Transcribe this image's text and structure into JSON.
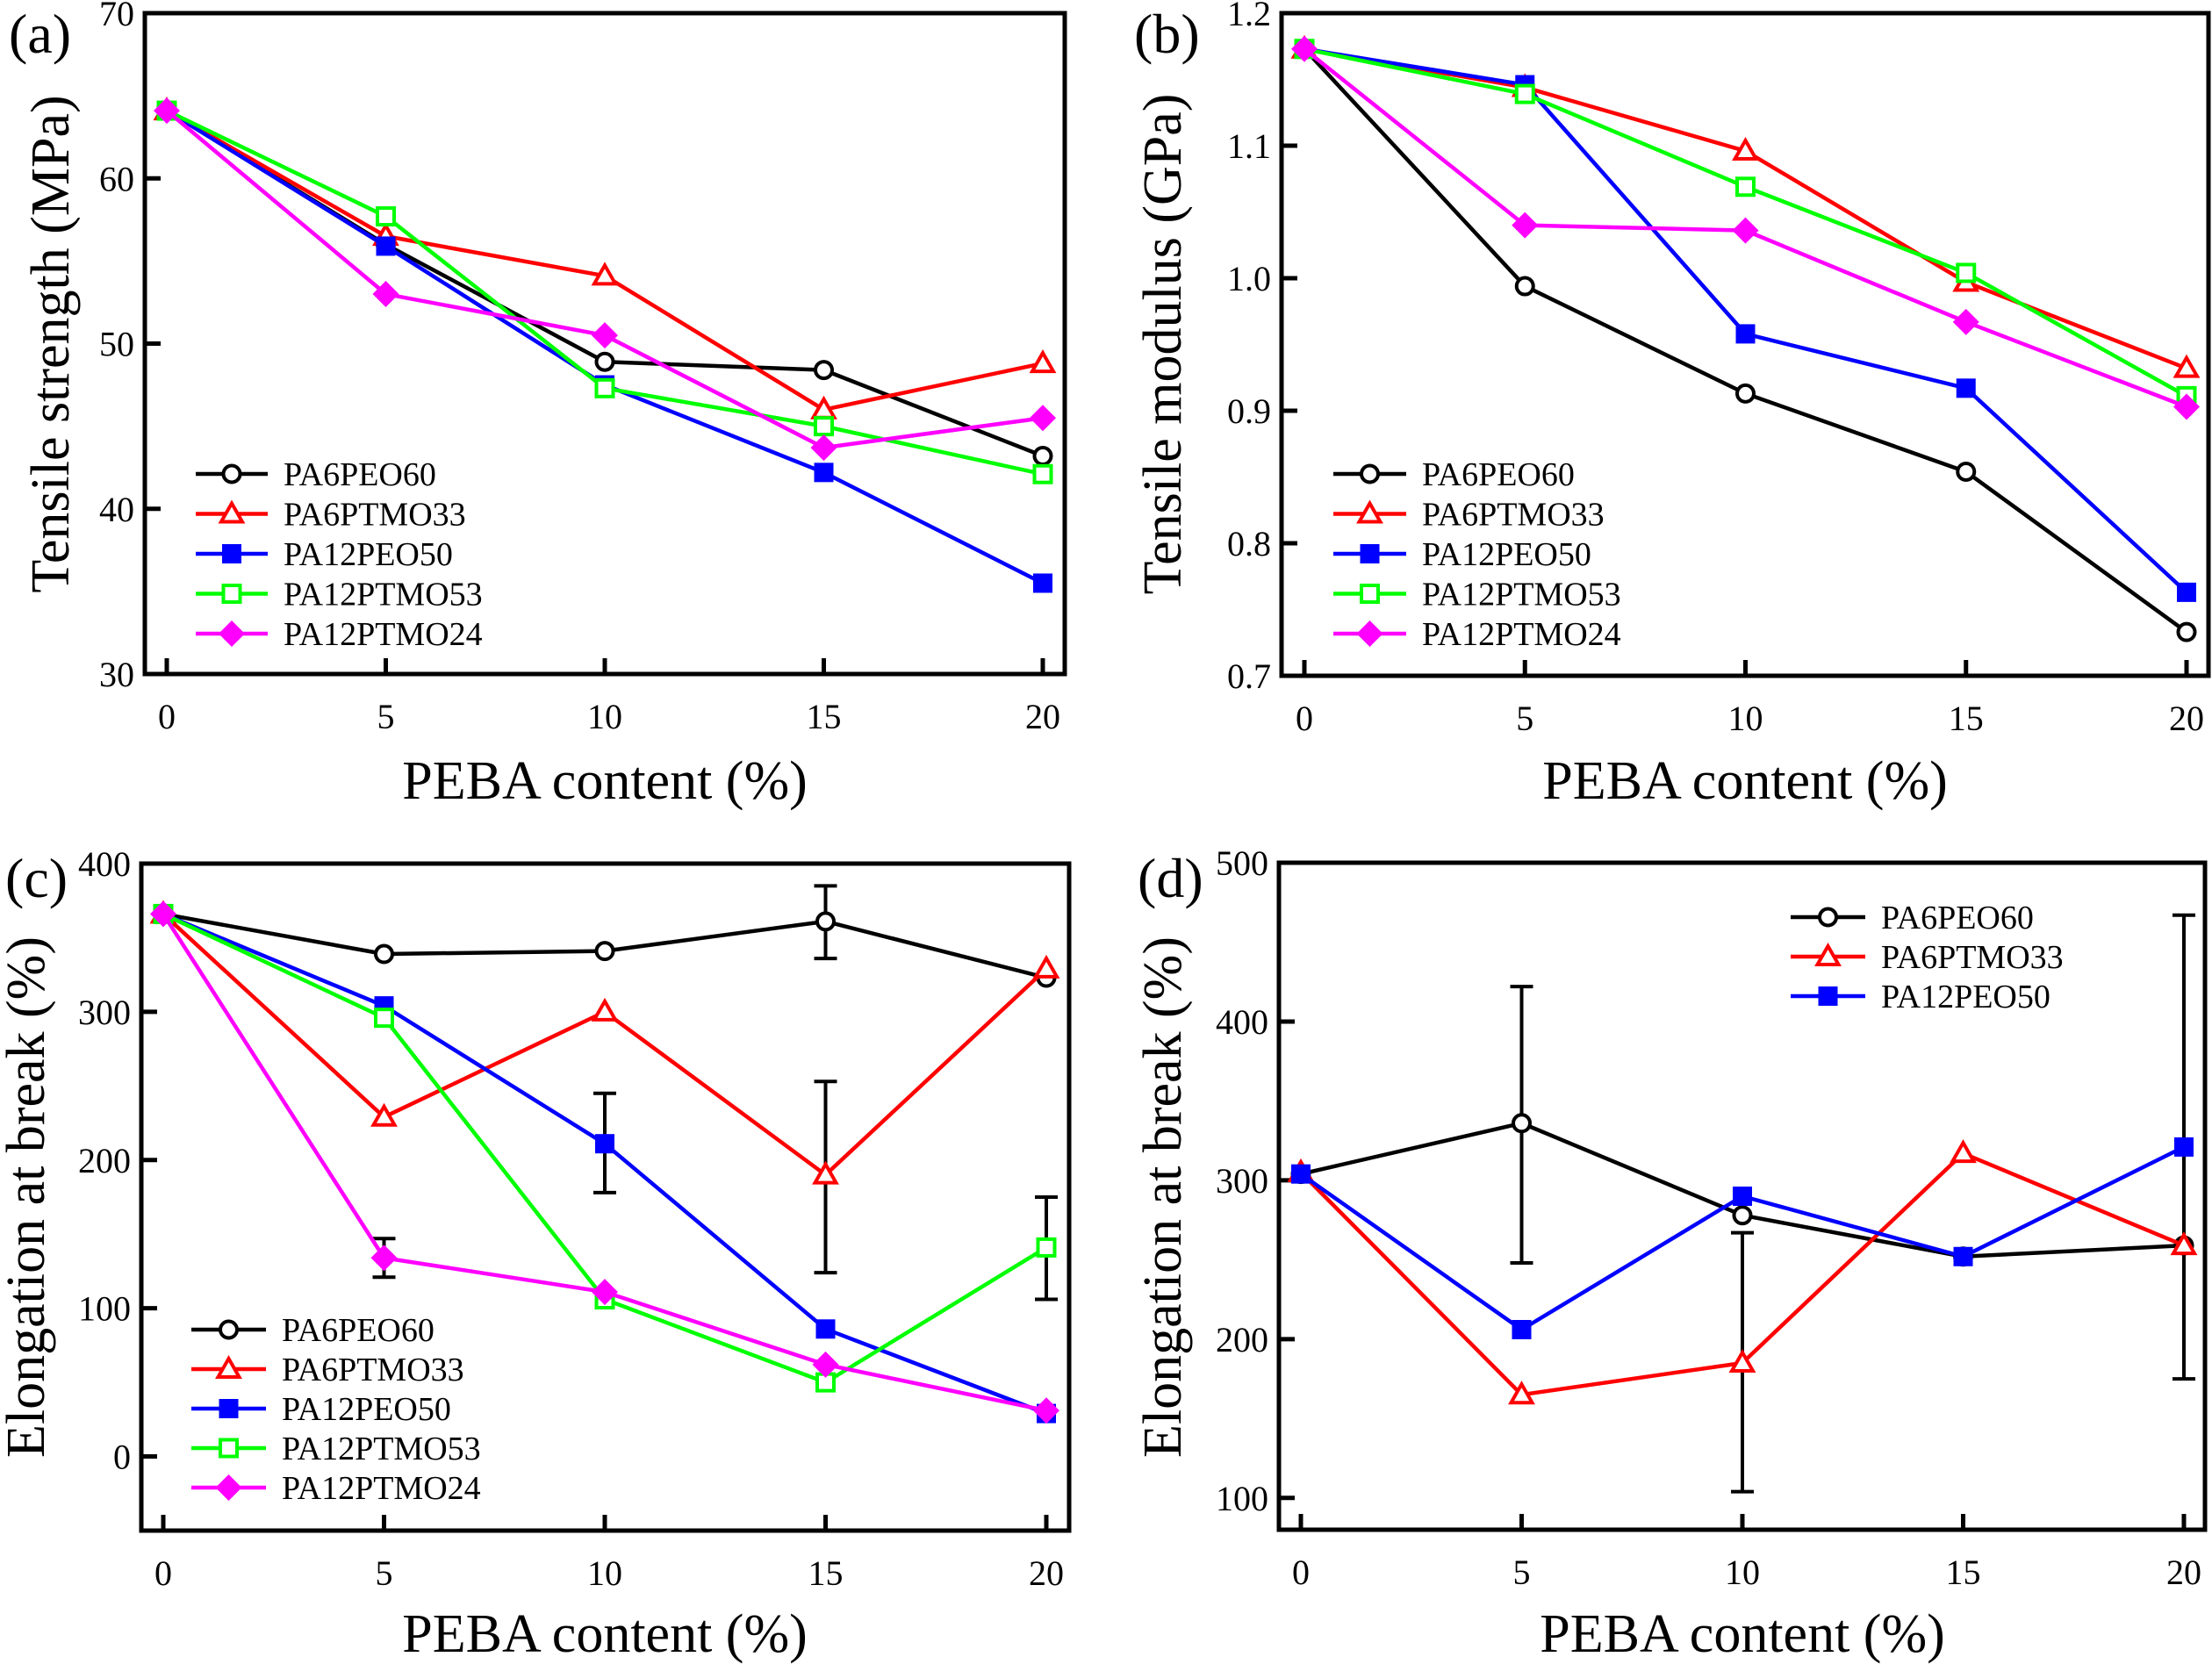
{
  "chart_data": [
    {
      "id": "a",
      "type": "line",
      "panel_label": "(a)",
      "title": "",
      "xlabel": "PEBA content (%)",
      "ylabel": "Tensile strength (MPa)",
      "x": [
        0,
        5,
        10,
        15,
        20
      ],
      "xticks": [
        "0",
        "5",
        "10",
        "15",
        "20"
      ],
      "xlim": [
        0,
        20
      ],
      "ylim": [
        30,
        70
      ],
      "yticks": [
        30,
        40,
        50,
        60,
        70
      ],
      "ytick_labels": [
        "30",
        "40",
        "50",
        "60",
        "70"
      ],
      "grid": false,
      "legend": "bottom-left",
      "series": [
        {
          "name": "PA6PEO60",
          "color": "#000000",
          "marker": "open-circle",
          "values": [
            64.1,
            56.0,
            48.9,
            48.4,
            43.2
          ],
          "errors": []
        },
        {
          "name": "PA6PTMO33",
          "color": "#ff0000",
          "marker": "open-triangle",
          "values": [
            64.1,
            56.5,
            54.1,
            46.0,
            48.8
          ],
          "errors": []
        },
        {
          "name": "PA12PEO50",
          "color": "#0000ff",
          "marker": "filled-square",
          "values": [
            64.1,
            55.9,
            47.5,
            42.2,
            35.5
          ],
          "errors": []
        },
        {
          "name": "PA12PTMO53",
          "color": "#00ff00",
          "marker": "open-square",
          "values": [
            64.1,
            57.7,
            47.3,
            45.0,
            42.1
          ],
          "errors": []
        },
        {
          "name": "PA12PTMO24",
          "color": "#ff00ff",
          "marker": "filled-diamond",
          "values": [
            64.1,
            53.0,
            50.5,
            43.7,
            45.5
          ],
          "errors": []
        }
      ]
    },
    {
      "id": "b",
      "type": "line",
      "panel_label": "(b)",
      "title": "",
      "xlabel": "PEBA content (%)",
      "ylabel": "Tensile modulus (GPa)",
      "x": [
        0,
        5,
        10,
        15,
        20
      ],
      "xticks": [
        "0",
        "5",
        "10",
        "15",
        "20"
      ],
      "xlim": [
        0,
        20
      ],
      "ylim": [
        0.7,
        1.2
      ],
      "yticks": [
        0.7,
        0.8,
        0.9,
        1.0,
        1.1,
        1.2
      ],
      "ytick_labels": [
        "0.7",
        "0.8",
        "0.9",
        "1.0",
        "1.1",
        "1.2"
      ],
      "grid": false,
      "legend": "bottom-left",
      "series": [
        {
          "name": "PA6PEO60",
          "color": "#000000",
          "marker": "open-circle",
          "values": [
            1.173,
            0.994,
            0.913,
            0.854,
            0.733
          ],
          "errors": []
        },
        {
          "name": "PA6PTMO33",
          "color": "#ff0000",
          "marker": "open-triangle",
          "values": [
            1.173,
            1.144,
            1.096,
            0.997,
            0.932
          ],
          "errors": []
        },
        {
          "name": "PA12PEO50",
          "color": "#0000ff",
          "marker": "filled-square",
          "values": [
            1.173,
            1.146,
            0.958,
            0.917,
            0.763
          ],
          "errors": []
        },
        {
          "name": "PA12PTMO53",
          "color": "#00ff00",
          "marker": "open-square",
          "values": [
            1.173,
            1.139,
            1.069,
            1.004,
            0.911
          ],
          "errors": []
        },
        {
          "name": "PA12PTMO24",
          "color": "#ff00ff",
          "marker": "filled-diamond",
          "values": [
            1.173,
            1.04,
            1.036,
            0.967,
            0.903
          ],
          "errors": []
        }
      ]
    },
    {
      "id": "c",
      "type": "line",
      "panel_label": "(c)",
      "title": "",
      "xlabel": "PEBA content (%)",
      "ylabel": "Elongation at break (%)",
      "x": [
        0,
        5,
        10,
        15,
        20
      ],
      "xticks": [
        "0",
        "5",
        "10",
        "15",
        "20"
      ],
      "xlim": [
        0,
        20
      ],
      "ylim": [
        -50,
        400
      ],
      "yticks": [
        0,
        100,
        200,
        300,
        400
      ],
      "ytick_labels": [
        "0",
        "100",
        "200",
        "300",
        "400"
      ],
      "grid": false,
      "legend": "bottom-left",
      "series": [
        {
          "name": "PA6PEO60",
          "color": "#000000",
          "marker": "open-circle",
          "values": [
            366,
            339,
            341,
            361,
            323
          ],
          "errors": [
            {
              "x": 15,
              "low": 336,
              "high": 385
            }
          ]
        },
        {
          "name": "PA6PTMO33",
          "color": "#ff0000",
          "marker": "open-triangle",
          "values": [
            366,
            229,
            300,
            190,
            329
          ],
          "errors": [
            {
              "x": 15,
              "low": 124,
              "high": 253
            }
          ]
        },
        {
          "name": "PA12PEO50",
          "color": "#0000ff",
          "marker": "filled-square",
          "values": [
            366,
            304,
            211,
            86,
            29
          ],
          "errors": [
            {
              "x": 10,
              "low": 178,
              "high": 245
            }
          ]
        },
        {
          "name": "PA12PTMO53",
          "color": "#00ff00",
          "marker": "open-square",
          "values": [
            366,
            296,
            106,
            50,
            141
          ],
          "errors": [
            {
              "x": 20,
              "low": 106,
              "high": 175
            }
          ]
        },
        {
          "name": "PA12PTMO24",
          "color": "#ff00ff",
          "marker": "filled-diamond",
          "values": [
            366,
            134,
            111,
            62,
            31
          ],
          "errors": [
            {
              "x": 5,
              "low": 121,
              "high": 147
            }
          ]
        }
      ]
    },
    {
      "id": "d",
      "type": "line",
      "panel_label": "(d)",
      "title": "",
      "xlabel": "PEBA content (%)",
      "ylabel": "Elongation at break (%)",
      "x": [
        0,
        5,
        10,
        15,
        20
      ],
      "xticks": [
        "0",
        "5",
        "10",
        "15",
        "20"
      ],
      "xlim": [
        0,
        20
      ],
      "ylim": [
        80,
        500
      ],
      "yticks": [
        100,
        200,
        300,
        400,
        500
      ],
      "ytick_labels": [
        "100",
        "200",
        "300",
        "400",
        "500"
      ],
      "grid": false,
      "legend": "top-right",
      "series": [
        {
          "name": "PA6PEO60",
          "color": "#000000",
          "marker": "open-circle",
          "values": [
            304,
            336,
            278,
            252,
            259
          ],
          "errors": [
            {
              "x": 5,
              "low": 248,
              "high": 422
            },
            {
              "x": 10,
              "low": 104,
              "high": 267
            },
            {
              "x": 20,
              "low": 175,
              "high": 467
            }
          ]
        },
        {
          "name": "PA6PTMO33",
          "color": "#ff0000",
          "marker": "open-triangle",
          "values": [
            305,
            165,
            185,
            317,
            259
          ],
          "errors": []
        },
        {
          "name": "PA12PEO50",
          "color": "#0000ff",
          "marker": "filled-square",
          "values": [
            304,
            206,
            290,
            252,
            321
          ],
          "errors": []
        }
      ]
    }
  ]
}
